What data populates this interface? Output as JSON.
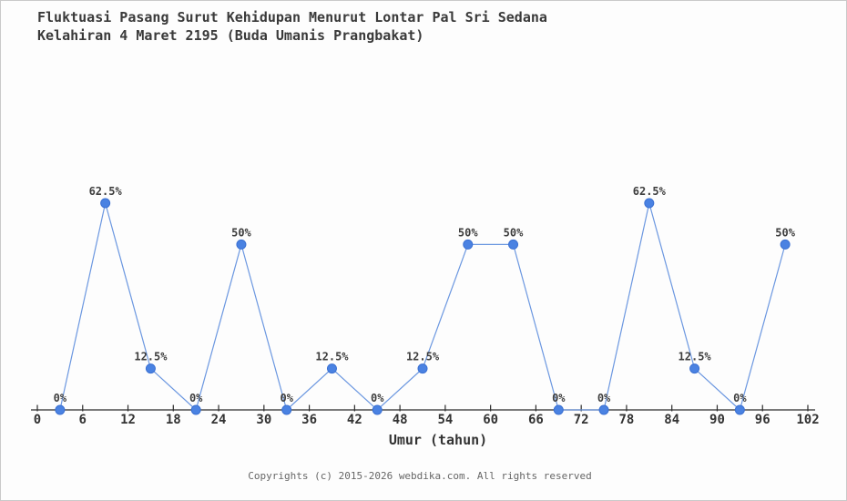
{
  "page": {
    "title_line1": "Fluktuasi Pasang Surut Kehidupan Menurut Lontar Pal Sri Sedana",
    "title_line2": "Kelahiran 4 Maret 2195 (Buda Umanis Prangbakat)",
    "footer": "Copyrights (c) 2015-2026 webdika.com. All rights reserved"
  },
  "chart_data": {
    "type": "line",
    "title": "Fluktuasi Pasang Surut Kehidupan Menurut Lontar Pal Sri Sedana Kelahiran 4 Maret 2195 (Buda Umanis Prangbakat)",
    "xlabel": "Umur (tahun)",
    "ylabel": "",
    "x": [
      3,
      9,
      15,
      21,
      27,
      33,
      39,
      45,
      51,
      57,
      63,
      69,
      75,
      81,
      87,
      93,
      99
    ],
    "values": [
      0,
      62.5,
      12.5,
      0,
      50,
      0,
      12.5,
      0,
      12.5,
      50,
      50,
      0,
      0,
      62.5,
      12.5,
      0,
      50
    ],
    "point_labels": [
      "0%",
      "62.5%",
      "12.5%",
      "0%",
      "50%",
      "0%",
      "12.5%",
      "0%",
      "12.5%",
      "50%",
      "50%",
      "0%",
      "0%",
      "62.5%",
      "12.5%",
      "0%",
      "50%"
    ],
    "xlim": [
      0,
      102
    ],
    "ylim": [
      0,
      62.5
    ],
    "xticks": [
      0,
      6,
      12,
      18,
      24,
      30,
      36,
      42,
      48,
      54,
      60,
      66,
      72,
      78,
      84,
      90,
      96,
      102
    ],
    "grid": false,
    "legend": "none",
    "colors": {
      "line": "#6b97e0",
      "marker": "#4a82e2",
      "marker_border": "#3a70d2",
      "axis": "#2b2b2b",
      "tick_label": "#333333",
      "value_label": "#3d3d3d",
      "title": "#3a3a3a",
      "footer": "#666666",
      "background": "#fdfdfd",
      "border": "#c9c9c9"
    }
  }
}
